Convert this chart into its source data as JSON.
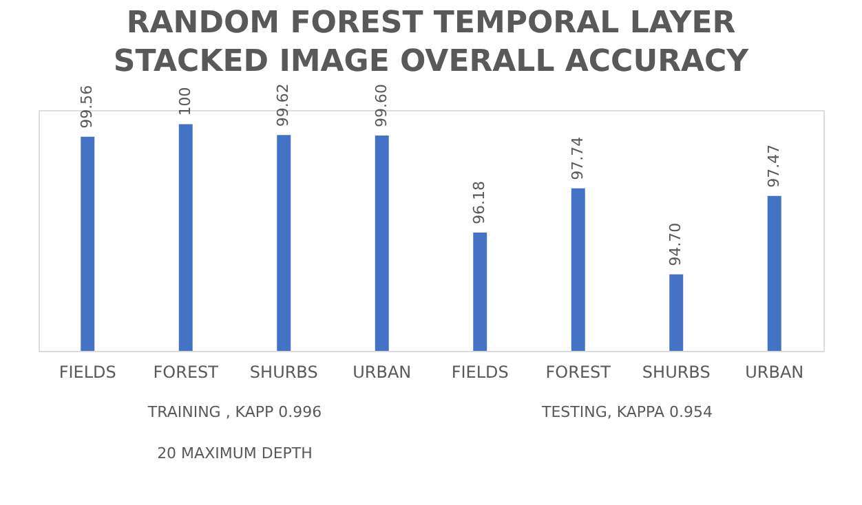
{
  "chart_data": {
    "type": "bar",
    "title": "RANDOM FOREST TEMPORAL LAYER STACKED IMAGE OVERALL ACCURACY",
    "xlabel": "20 MAXIMUM DEPTH",
    "categories": [
      "FIELDS",
      "FOREST",
      "SHURBS",
      "URBAN",
      "FIELDS",
      "FOREST",
      "SHURBS",
      "URBAN"
    ],
    "values": [
      99.56,
      100,
      99.62,
      99.6,
      96.18,
      97.74,
      94.7,
      97.47
    ],
    "value_labels": [
      "99.56",
      "100",
      "99.62",
      "99.60",
      "96.18",
      "97.74",
      "94.70",
      "97.47"
    ],
    "color": "#4472c4",
    "ylim": [
      92,
      100.5
    ],
    "tick_labels": "x",
    "grid": false,
    "annotations": [
      "TRAINING , KAPP 0.996",
      "TESTING, KAPPA 0.954"
    ]
  }
}
